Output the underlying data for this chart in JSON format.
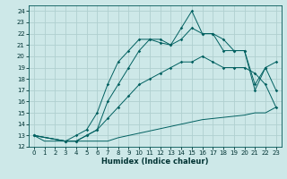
{
  "xlabel": "Humidex (Indice chaleur)",
  "background_color": "#cde8e8",
  "grid_color": "#b0d0d0",
  "line_color": "#006060",
  "xlim": [
    -0.5,
    23.5
  ],
  "ylim": [
    12,
    24.5
  ],
  "yticks": [
    12,
    13,
    14,
    15,
    16,
    17,
    18,
    19,
    20,
    21,
    22,
    23,
    24
  ],
  "xticks": [
    0,
    1,
    2,
    3,
    4,
    5,
    6,
    7,
    8,
    9,
    10,
    11,
    12,
    13,
    14,
    15,
    16,
    17,
    18,
    19,
    20,
    21,
    22,
    23
  ],
  "line1_x": [
    0,
    1,
    2,
    3,
    4,
    5,
    6,
    7,
    8,
    9,
    10,
    11,
    12,
    13,
    14,
    15,
    16,
    17,
    18,
    19,
    20,
    21,
    22,
    23
  ],
  "line1_y": [
    13.0,
    12.5,
    12.5,
    12.5,
    12.5,
    12.5,
    12.5,
    12.5,
    12.8,
    13.0,
    13.2,
    13.4,
    13.6,
    13.8,
    14.0,
    14.2,
    14.4,
    14.5,
    14.6,
    14.7,
    14.8,
    15.0,
    15.0,
    15.5
  ],
  "line2_x": [
    0,
    3,
    4,
    5,
    6,
    7,
    8,
    9,
    10,
    11,
    12,
    13,
    14,
    15,
    16,
    17,
    18,
    19,
    20,
    21,
    22,
    23
  ],
  "line2_y": [
    13.0,
    12.5,
    12.5,
    13.0,
    13.5,
    14.5,
    15.5,
    16.5,
    17.5,
    18.0,
    18.5,
    19.0,
    19.5,
    19.5,
    20.0,
    19.5,
    19.0,
    19.0,
    19.0,
    18.5,
    17.5,
    15.5
  ],
  "line3_x": [
    0,
    3,
    4,
    5,
    6,
    7,
    8,
    9,
    10,
    11,
    12,
    13,
    14,
    15,
    16,
    17,
    18,
    19,
    20,
    21,
    22,
    23
  ],
  "line3_y": [
    13.0,
    12.5,
    13.0,
    13.5,
    15.0,
    17.5,
    19.5,
    20.5,
    21.5,
    21.5,
    21.2,
    21.0,
    21.5,
    22.5,
    22.0,
    22.0,
    21.5,
    20.5,
    20.5,
    17.5,
    19.0,
    19.5
  ],
  "line4_x": [
    0,
    3,
    4,
    5,
    6,
    7,
    8,
    9,
    10,
    11,
    12,
    13,
    14,
    15,
    16,
    17,
    18,
    19,
    20,
    21,
    22,
    23
  ],
  "line4_y": [
    13.0,
    12.5,
    12.5,
    13.0,
    13.5,
    16.0,
    17.5,
    19.0,
    20.5,
    21.5,
    21.5,
    21.0,
    22.5,
    24.0,
    22.0,
    22.0,
    20.5,
    20.5,
    20.5,
    17.0,
    19.0,
    17.0
  ]
}
